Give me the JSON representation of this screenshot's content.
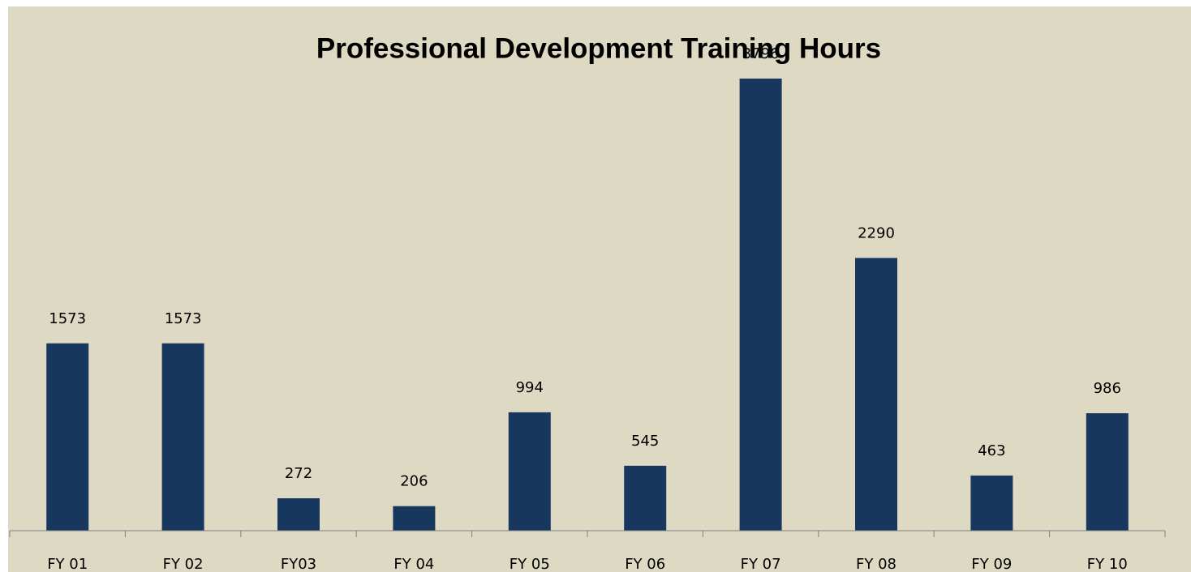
{
  "chart_data": {
    "type": "bar",
    "title": "Professional Development Training Hours",
    "categories": [
      "FY 01",
      "FY 02",
      "FY03",
      "FY 04",
      "FY 05",
      "FY 06",
      "FY 07",
      "FY 08",
      "FY 09",
      "FY 10"
    ],
    "values": [
      1573,
      1573,
      272,
      206,
      994,
      545,
      3796,
      2290,
      463,
      986
    ],
    "color": "#17375e",
    "ylim": [
      0,
      4000
    ]
  }
}
